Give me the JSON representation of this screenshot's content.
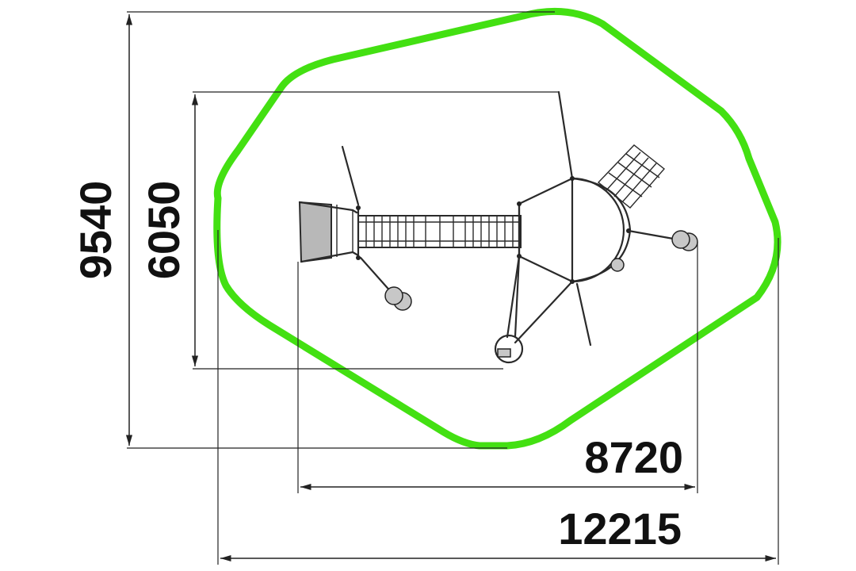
{
  "drawing": {
    "zone_color": "#43e012",
    "line_color": "#222222",
    "dimensions": {
      "overall_height": "9540",
      "equipment_height": "6050",
      "equipment_width": "8720",
      "overall_width": "12215"
    }
  }
}
